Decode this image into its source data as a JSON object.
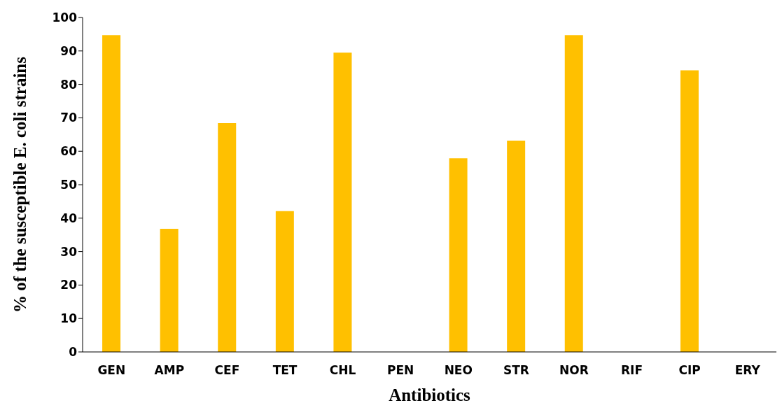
{
  "chart_data": {
    "type": "bar",
    "xlabel": "Antibiotics",
    "ylabel": "% of the susceptible E. coli strains",
    "categories": [
      "GEN",
      "AMP",
      "CEF",
      "TET",
      "CHL",
      "PEN",
      "NEO",
      "STR",
      "NOR",
      "RIF",
      "CIP",
      "ERY"
    ],
    "values": [
      94.7,
      36.8,
      68.4,
      42.1,
      89.5,
      0,
      57.9,
      63.2,
      94.7,
      0,
      84.2,
      0
    ],
    "color": "#ffc000",
    "ylim": [
      0,
      100
    ],
    "yticks": [
      0,
      10,
      20,
      30,
      40,
      50,
      60,
      70,
      80,
      90,
      100
    ],
    "grid": false,
    "legend": false
  }
}
